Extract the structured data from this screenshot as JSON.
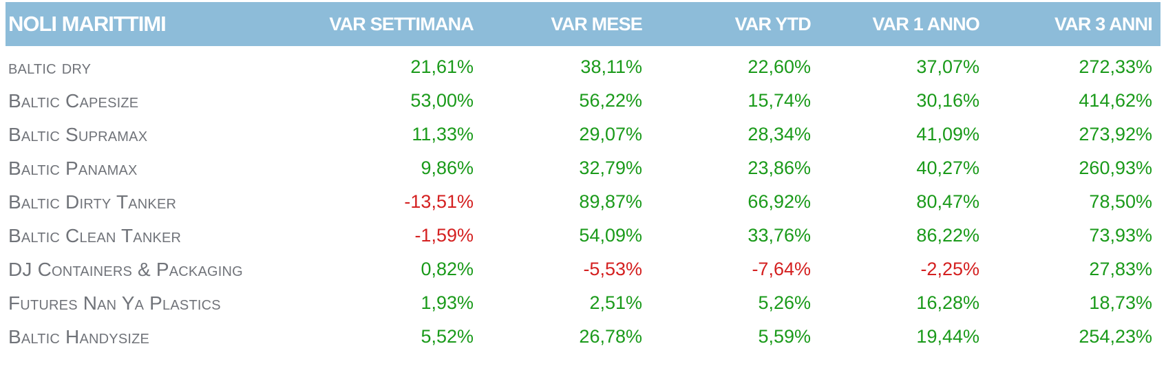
{
  "table": {
    "headers": [
      "NOLI MARITTIMI",
      "VAR SETTIMANA",
      "VAR MESE",
      "VAR YTD",
      "VAR 1 ANNO",
      "VAR 3 ANNI"
    ],
    "rows": [
      {
        "name": "baltic dry",
        "values": [
          "21,61%",
          "38,11%",
          "22,60%",
          "37,07%",
          "272,33%"
        ],
        "signs": [
          "pos",
          "pos",
          "pos",
          "pos",
          "pos"
        ]
      },
      {
        "name": "Baltic Capesize",
        "values": [
          "53,00%",
          "56,22%",
          "15,74%",
          "30,16%",
          "414,62%"
        ],
        "signs": [
          "pos",
          "pos",
          "pos",
          "pos",
          "pos"
        ]
      },
      {
        "name": "Baltic Supramax",
        "values": [
          "11,33%",
          "29,07%",
          "28,34%",
          "41,09%",
          "273,92%"
        ],
        "signs": [
          "pos",
          "pos",
          "pos",
          "pos",
          "pos"
        ]
      },
      {
        "name": "Baltic Panamax",
        "values": [
          "9,86%",
          "32,79%",
          "23,86%",
          "40,27%",
          "260,93%"
        ],
        "signs": [
          "pos",
          "pos",
          "pos",
          "pos",
          "pos"
        ]
      },
      {
        "name": "Baltic Dirty Tanker",
        "values": [
          "-13,51%",
          "89,87%",
          "66,92%",
          "80,47%",
          "78,50%"
        ],
        "signs": [
          "neg",
          "pos",
          "pos",
          "pos",
          "pos"
        ]
      },
      {
        "name": "Baltic Clean Tanker",
        "values": [
          "-1,59%",
          "54,09%",
          "33,76%",
          "86,22%",
          "73,93%"
        ],
        "signs": [
          "neg",
          "pos",
          "pos",
          "pos",
          "pos"
        ]
      },
      {
        "name": "DJ Containers & Packaging",
        "values": [
          "0,82%",
          "-5,53%",
          "-7,64%",
          "-2,25%",
          "27,83%"
        ],
        "signs": [
          "pos",
          "neg",
          "neg",
          "neg",
          "pos"
        ]
      },
      {
        "name": "Futures Nan Ya Plastics",
        "values": [
          "1,93%",
          "2,51%",
          "5,26%",
          "16,28%",
          "18,73%"
        ],
        "signs": [
          "pos",
          "pos",
          "pos",
          "pos",
          "pos"
        ]
      },
      {
        "name": "Baltic Handysize",
        "values": [
          "5,52%",
          "26,78%",
          "5,59%",
          "19,44%",
          "254,23%"
        ],
        "signs": [
          "pos",
          "pos",
          "pos",
          "pos",
          "pos"
        ]
      }
    ]
  },
  "colors": {
    "header_bg": "#8dbcd9",
    "header_text": "#ffffff",
    "name_text": "#707379",
    "positive": "#1a9a1a",
    "negative": "#d42020"
  }
}
